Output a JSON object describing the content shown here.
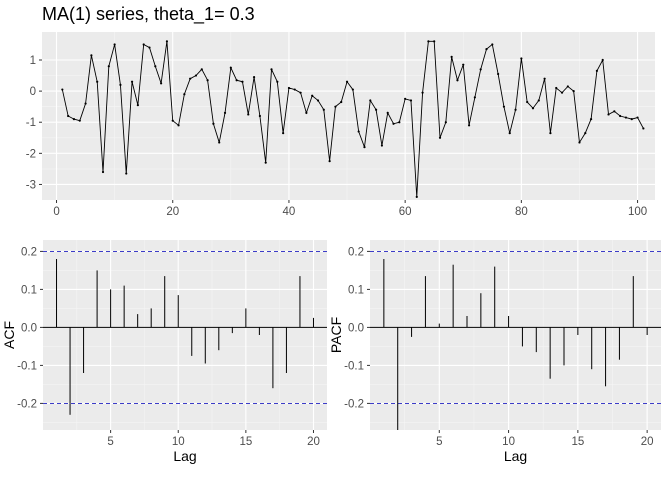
{
  "title": "MA(1) series, theta_1= 0.3",
  "chart_data": [
    {
      "type": "line",
      "title": "MA(1) series, theta_1= 0.3",
      "xlabel": "",
      "ylabel": "",
      "xlim": [
        -2.5,
        103
      ],
      "ylim": [
        -3.5,
        1.9
      ],
      "xticks": [
        0,
        20,
        40,
        60,
        80,
        100
      ],
      "yticks": [
        1,
        0,
        -1,
        -2,
        -3
      ],
      "grid": true,
      "series": [
        {
          "values": [
            0.05,
            -0.8,
            -0.9,
            -0.95,
            -0.4,
            1.15,
            0.3,
            -2.6,
            0.8,
            1.5,
            0.2,
            -2.65,
            0.3,
            -0.45,
            1.5,
            1.4,
            0.8,
            0.25,
            1.6,
            -0.95,
            -1.1,
            -0.1,
            0.4,
            0.5,
            0.7,
            0.35,
            -1.05,
            -1.65,
            -0.7,
            0.75,
            0.35,
            0.3,
            -0.75,
            0.45,
            -0.8,
            -2.3,
            0.7,
            0.3,
            -1.35,
            0.1,
            0.05,
            -0.05,
            -0.7,
            -0.15,
            -0.3,
            -0.6,
            -2.25,
            -0.5,
            -0.35,
            0.3,
            0.05,
            -1.3,
            -1.8,
            -0.3,
            -0.6,
            -1.75,
            -0.7,
            -1.05,
            -1.0,
            -0.25,
            -0.3,
            -3.4,
            -0.05,
            1.6,
            1.6,
            -1.5,
            -1.0,
            1.1,
            0.35,
            0.85,
            -1.1,
            -0.2,
            0.7,
            1.35,
            1.5,
            0.55,
            -0.5,
            -1.35,
            -0.6,
            1.05,
            -0.35,
            -0.55,
            -0.3,
            0.4,
            -1.35,
            0.1,
            -0.05,
            0.15,
            0.0,
            -1.65,
            -1.35,
            -0.9,
            0.65,
            1.0,
            -0.75,
            -0.65,
            -0.8,
            -0.85,
            -0.9,
            -0.85,
            -1.2
          ]
        }
      ]
    },
    {
      "type": "bar",
      "xlabel": "Lag",
      "ylabel": "ACF",
      "xlim": [
        0,
        21
      ],
      "ylim": [
        -0.27,
        0.23
      ],
      "xticks": [
        5,
        10,
        15,
        20
      ],
      "yticks": [
        0.2,
        0.1,
        0.0,
        -0.1,
        -0.2
      ],
      "ytick_labels": [
        "0.2",
        "0.1",
        "0.0",
        "-0.1",
        "-0.2"
      ],
      "confidence_band": [
        0.2,
        -0.2
      ],
      "lags": [
        1,
        2,
        3,
        4,
        5,
        6,
        7,
        8,
        9,
        10,
        11,
        12,
        13,
        14,
        15,
        16,
        17,
        18,
        19,
        20
      ],
      "values": [
        0.18,
        -0.23,
        -0.12,
        0.15,
        0.1,
        0.11,
        0.035,
        0.05,
        0.135,
        0.085,
        -0.075,
        -0.095,
        -0.06,
        -0.015,
        0.05,
        -0.02,
        -0.16,
        -0.12,
        0.135,
        0.025
      ]
    },
    {
      "type": "bar",
      "xlabel": "Lag",
      "ylabel": "PACF",
      "xlim": [
        0,
        21
      ],
      "ylim": [
        -0.27,
        0.23
      ],
      "xticks": [
        5,
        10,
        15,
        20
      ],
      "yticks": [
        0.2,
        0.1,
        0.0,
        -0.1,
        -0.2
      ],
      "ytick_labels": [
        "0.2",
        "0.1",
        "0.0",
        "-0.1",
        "-0.2"
      ],
      "confidence_band": [
        0.2,
        -0.2
      ],
      "lags": [
        1,
        2,
        3,
        4,
        5,
        6,
        7,
        8,
        9,
        10,
        11,
        12,
        13,
        14,
        15,
        16,
        17,
        18,
        19,
        20
      ],
      "values": [
        0.18,
        -0.27,
        -0.025,
        0.135,
        0.01,
        0.165,
        0.03,
        0.09,
        0.16,
        0.03,
        -0.05,
        -0.065,
        -0.135,
        -0.1,
        -0.02,
        -0.11,
        -0.155,
        -0.085,
        0.135,
        -0.02
      ]
    }
  ],
  "colors": {
    "panel_bg": "#ebebeb",
    "grid_major": "#ffffff",
    "grid_minor": "#f5f5f5",
    "series": "#000000",
    "band": "#2020c0",
    "tick_text": "#4d4d4d"
  }
}
